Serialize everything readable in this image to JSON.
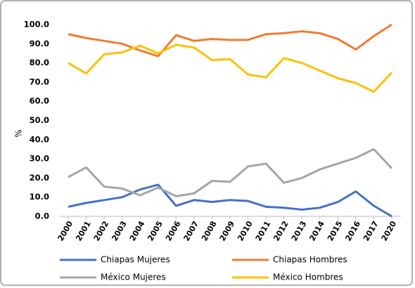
{
  "chart_data": {
    "type": "line",
    "y_label": "%",
    "categories": [
      "2000",
      "2001",
      "2002",
      "2003",
      "2004",
      "2005",
      "2006",
      "2007",
      "2008",
      "2009",
      "2010",
      "2011",
      "2012",
      "2013",
      "2014",
      "2015",
      "2016",
      "2017",
      "2020"
    ],
    "series": [
      {
        "name": "Chiapas Mujeres",
        "color": "#4472c4",
        "values": [
          5,
          7,
          8.5,
          10,
          14,
          16.5,
          5.5,
          8.5,
          7.5,
          8.5,
          8,
          5,
          4.5,
          3.5,
          4.5,
          7.5,
          13,
          5.5,
          0
        ]
      },
      {
        "name": "Chiapas Hombres",
        "color": "#ed7d31",
        "values": [
          95,
          93,
          91.5,
          90,
          86.5,
          83.5,
          94.5,
          91.5,
          92.5,
          92,
          92,
          95,
          95.5,
          96.5,
          95.5,
          92.5,
          87,
          94,
          100
        ]
      },
      {
        "name": "México Mujeres",
        "color": "#a5a5a5",
        "values": [
          20.5,
          25.5,
          15.5,
          14.5,
          11,
          15,
          10.5,
          12,
          18.5,
          18,
          26,
          27.5,
          17.5,
          20,
          24.5,
          27.5,
          30.5,
          35,
          25
        ]
      },
      {
        "name": "México Hombres",
        "color": "#ffc000",
        "values": [
          80,
          74.5,
          84.5,
          85.5,
          89,
          85,
          89.5,
          88,
          81.5,
          82,
          74,
          72.5,
          82.5,
          80,
          76,
          72,
          69.5,
          65,
          75
        ]
      }
    ],
    "ylim": [
      0,
      100
    ],
    "yticks": [
      {
        "value": 0,
        "label": "0.0"
      },
      {
        "value": 10,
        "label": "10.0"
      },
      {
        "value": 20,
        "label": "20.0"
      },
      {
        "value": 30,
        "label": "30.0"
      },
      {
        "value": 40,
        "label": "40.0"
      },
      {
        "value": 50,
        "label": "50.0"
      },
      {
        "value": 60,
        "label": "60.0"
      },
      {
        "value": 70,
        "label": "70.0"
      },
      {
        "value": 80,
        "label": "80.0"
      },
      {
        "value": 90,
        "label": "90.0"
      },
      {
        "value": 100,
        "label": "100.0"
      }
    ],
    "grid": false,
    "legend": "bottom"
  }
}
